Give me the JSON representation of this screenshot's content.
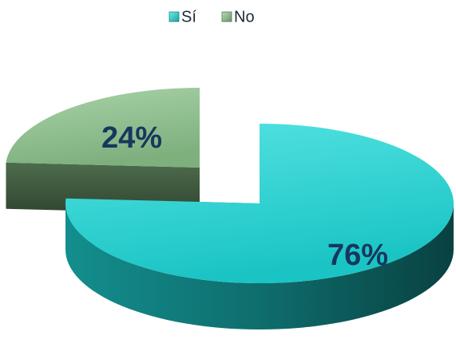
{
  "chart_data": {
    "type": "pie3d",
    "categories": [
      "Sí",
      "No"
    ],
    "values": [
      76,
      24
    ],
    "value_labels": [
      "76%",
      "24%"
    ],
    "colors": [
      "#1ddada",
      "#8cc48c"
    ],
    "legend": "top"
  }
}
